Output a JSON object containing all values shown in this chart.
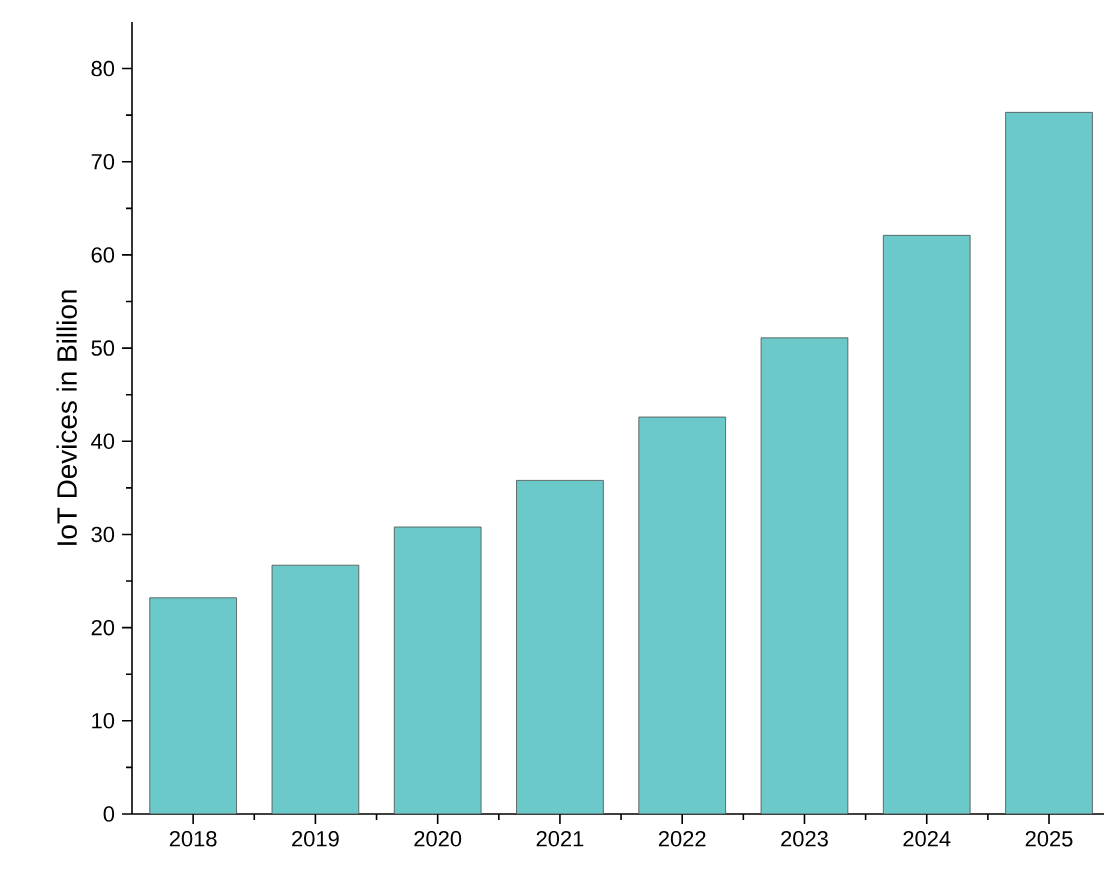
{
  "chart_data": {
    "type": "bar",
    "ylabel": "IoT Devices in Billion",
    "categories": [
      "2018",
      "2019",
      "2020",
      "2021",
      "2022",
      "2023",
      "2024",
      "2025"
    ],
    "values": [
      23.2,
      26.7,
      30.8,
      35.8,
      42.6,
      51.1,
      62.1,
      75.3
    ],
    "color": "#6cc9c9",
    "ylim": [
      0,
      85
    ],
    "yticks": [
      0,
      10,
      20,
      30,
      40,
      50,
      60,
      70,
      80
    ],
    "grid": false
  }
}
